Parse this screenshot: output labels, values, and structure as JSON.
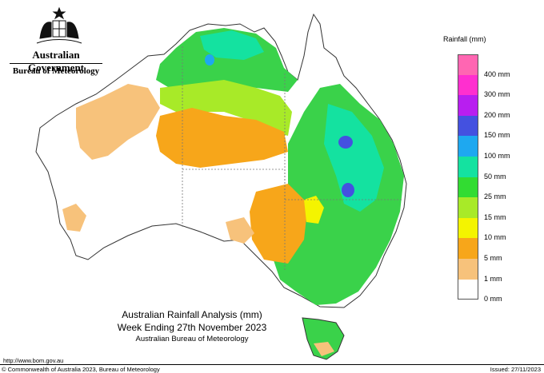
{
  "header": {
    "government": "Australian Government",
    "bureau": "Bureau of Meteorology"
  },
  "legend": {
    "title": "Rainfall (mm)",
    "items": [
      {
        "label": "",
        "color": "#ff66b2"
      },
      {
        "label": "400 mm",
        "color": "#ff2fcf"
      },
      {
        "label": "300 mm",
        "color": "#b81ef0"
      },
      {
        "label": "200 mm",
        "color": "#4451e0"
      },
      {
        "label": "150 mm",
        "color": "#1ea8f0"
      },
      {
        "label": "100 mm",
        "color": "#14e2a0"
      },
      {
        "label": "50 mm",
        "color": "#32dc32"
      },
      {
        "label": "25 mm",
        "color": "#a8ea28"
      },
      {
        "label": "15 mm",
        "color": "#f4f400"
      },
      {
        "label": "10 mm",
        "color": "#f7a61a"
      },
      {
        "label": "5 mm",
        "color": "#f7c27b"
      },
      {
        "label": "1 mm",
        "color": "#ffffff"
      },
      {
        "label": "0 mm",
        "color": ""
      }
    ]
  },
  "title": {
    "line1": "Australian Rainfall Analysis (mm)",
    "line2": "Week Ending 27th November 2023",
    "line3": "Australian Bureau of Meteorology"
  },
  "footer": {
    "url": "http://www.bom.gov.au",
    "copyright": "© Commonwealth of Australia 2023, Bureau of Meteorology",
    "issued": "Issued: 27/11/2023"
  }
}
